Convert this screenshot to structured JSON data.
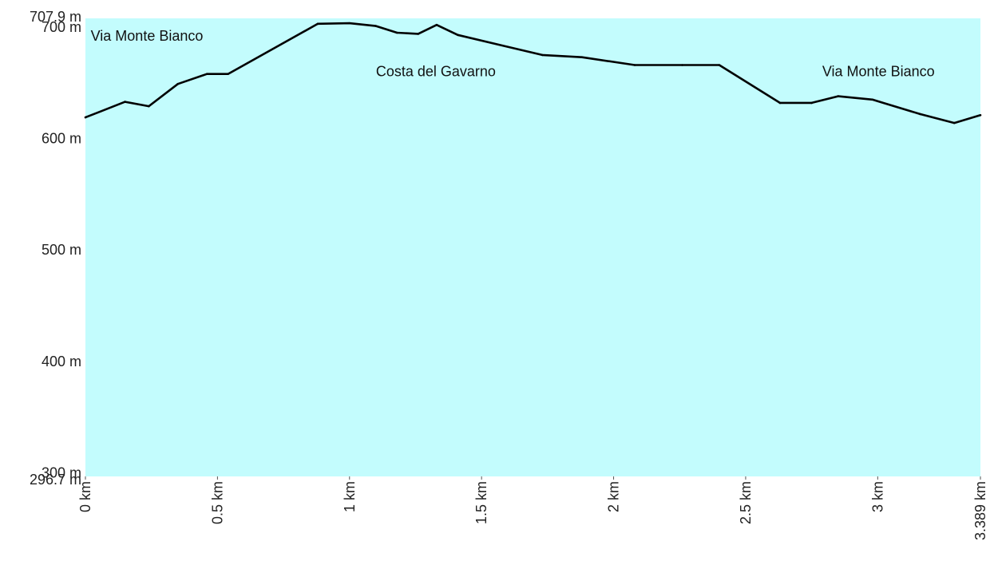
{
  "colors": {
    "plot_fill": "#c3fcfd",
    "line": "#000000",
    "text": "#222222"
  },
  "chart_data": {
    "type": "area",
    "title": "",
    "xlabel": "",
    "ylabel": "",
    "xlim": [
      0,
      3.389
    ],
    "ylim": [
      296.7,
      707.9
    ],
    "grid": false,
    "legend": "none",
    "y_ticks": [
      {
        "value": 707.9,
        "label": "707.9 m"
      },
      {
        "value": 700,
        "label": "700 m"
      },
      {
        "value": 600,
        "label": "600 m"
      },
      {
        "value": 500,
        "label": "500 m"
      },
      {
        "value": 400,
        "label": "400 m"
      },
      {
        "value": 300,
        "label": "300 m"
      },
      {
        "value": 296.7,
        "label": "296.7 m"
      }
    ],
    "x_ticks": [
      {
        "value": 0,
        "label": "0 km"
      },
      {
        "value": 0.5,
        "label": "0.5 km"
      },
      {
        "value": 1,
        "label": "1 km"
      },
      {
        "value": 1.5,
        "label": "1.5 km"
      },
      {
        "value": 2,
        "label": "2 km"
      },
      {
        "value": 2.5,
        "label": "2.5 km"
      },
      {
        "value": 3,
        "label": "3 km"
      },
      {
        "value": 3.389,
        "label": "3.389 km"
      }
    ],
    "series": [
      {
        "x": [
          0,
          0.15,
          0.24,
          0.35,
          0.46,
          0.54,
          0.88,
          1.0,
          1.1,
          1.18,
          1.26,
          1.33,
          1.41,
          1.73,
          1.88,
          2.08,
          2.26,
          2.4,
          2.63,
          2.75,
          2.85,
          2.98,
          3.16,
          3.29,
          3.389
        ],
        "y": [
          619,
          633,
          629,
          649,
          658,
          658,
          703,
          703.5,
          701,
          695,
          694,
          702,
          693,
          675,
          673,
          666,
          666,
          666,
          632,
          632,
          638,
          635,
          622,
          614,
          621
        ]
      }
    ],
    "annotations": [
      {
        "text": "Via Monte Bianco",
        "x": 0.02,
        "y": 688
      },
      {
        "text": "Costa del Gavarno",
        "x": 1.1,
        "y": 656
      },
      {
        "text": "Via Monte Bianco",
        "x": 2.79,
        "y": 656
      }
    ]
  }
}
